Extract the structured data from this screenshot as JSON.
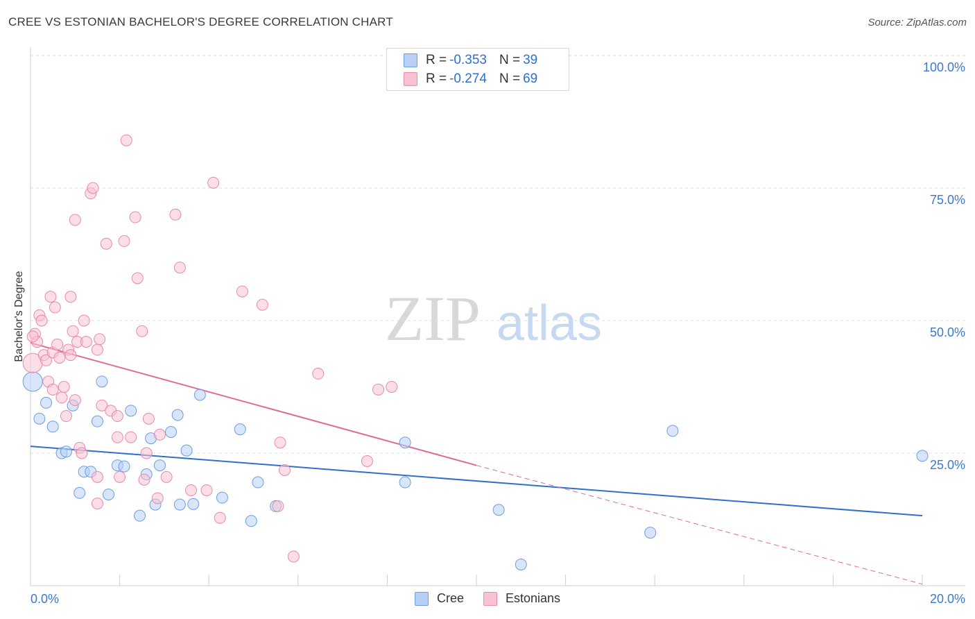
{
  "header": {
    "title": "CREE VS ESTONIAN BACHELOR'S DEGREE CORRELATION CHART",
    "source": "Source: ZipAtlas.com"
  },
  "watermark": {
    "zip": "ZIP",
    "atlas": "atlas"
  },
  "legend": {
    "rows": [
      {
        "r_label": "R =",
        "r_value": "-0.353",
        "n_label": "N =",
        "n_value": "39"
      },
      {
        "r_label": "R =",
        "r_value": "-0.274",
        "n_label": "N =",
        "n_value": "69"
      }
    ]
  },
  "bottom_legend": {
    "cree": "Cree",
    "estonians": "Estonians"
  },
  "colors": {
    "cree_fill": "#b8d0f5",
    "cree_stroke": "#6c9ee0",
    "cree_line": "#2f6fd0",
    "est_fill": "#f7c3d4",
    "est_stroke": "#e88aa9",
    "est_line": "#e06a95",
    "axis_text": "#3a78d0"
  },
  "chart_data": {
    "type": "scatter",
    "title": "CREE VS ESTONIAN BACHELOR'S DEGREE CORRELATION CHART",
    "xlabel": "",
    "ylabel": "Bachelor's Degree",
    "xlim": [
      0,
      20
    ],
    "ylim": [
      0,
      100
    ],
    "x_tick_labels": [
      "0.0%",
      "20.0%"
    ],
    "y_ticks": [
      25,
      50,
      75,
      100
    ],
    "y_tick_labels": [
      "25.0%",
      "50.0%",
      "75.0%",
      "100.0%"
    ],
    "legend_position": "top-center",
    "series": [
      {
        "name": "Cree",
        "points": [
          [
            0.05,
            38.5
          ],
          [
            0.2,
            31.5
          ],
          [
            0.35,
            34.5
          ],
          [
            0.5,
            30
          ],
          [
            0.7,
            25
          ],
          [
            0.8,
            25.3
          ],
          [
            0.95,
            34
          ],
          [
            1.1,
            17.5
          ],
          [
            1.2,
            21.5
          ],
          [
            1.35,
            21.5
          ],
          [
            1.5,
            31
          ],
          [
            1.6,
            38.5
          ],
          [
            1.75,
            17.2
          ],
          [
            1.95,
            22.7
          ],
          [
            2.1,
            22.5
          ],
          [
            2.25,
            33
          ],
          [
            2.45,
            13.2
          ],
          [
            2.6,
            21
          ],
          [
            2.7,
            27.8
          ],
          [
            2.8,
            15.3
          ],
          [
            2.9,
            22.7
          ],
          [
            3.15,
            29
          ],
          [
            3.3,
            32.2
          ],
          [
            3.35,
            15.3
          ],
          [
            3.5,
            25.5
          ],
          [
            3.65,
            15.4
          ],
          [
            3.8,
            36
          ],
          [
            4.3,
            16.6
          ],
          [
            4.7,
            29.5
          ],
          [
            4.95,
            12.2
          ],
          [
            5.1,
            19.5
          ],
          [
            5.5,
            15
          ],
          [
            8.4,
            27
          ],
          [
            8.4,
            19.5
          ],
          [
            10.5,
            14.3
          ],
          [
            11.0,
            4
          ],
          [
            13.9,
            10
          ],
          [
            14.4,
            29.2
          ],
          [
            20.0,
            24.5
          ]
        ]
      },
      {
        "name": "Estonians",
        "points": [
          [
            0.05,
            42
          ],
          [
            0.1,
            47.5
          ],
          [
            0.15,
            46
          ],
          [
            0.2,
            51
          ],
          [
            0.25,
            50
          ],
          [
            0.3,
            43.5
          ],
          [
            0.35,
            42.5
          ],
          [
            0.4,
            38.5
          ],
          [
            0.45,
            54.5
          ],
          [
            0.5,
            44
          ],
          [
            0.55,
            52.5
          ],
          [
            0.6,
            45.5
          ],
          [
            0.65,
            43
          ],
          [
            0.7,
            35.5
          ],
          [
            0.75,
            37.5
          ],
          [
            0.8,
            32
          ],
          [
            0.85,
            44.5
          ],
          [
            0.9,
            43.5
          ],
          [
            0.95,
            48
          ],
          [
            1.0,
            35
          ],
          [
            1.05,
            46
          ],
          [
            1.1,
            26
          ],
          [
            1.15,
            25
          ],
          [
            1.2,
            50
          ],
          [
            1.25,
            46
          ],
          [
            1.35,
            74
          ],
          [
            1.4,
            75
          ],
          [
            1.5,
            44.5
          ],
          [
            1.55,
            46.5
          ],
          [
            1.6,
            34
          ],
          [
            1.7,
            64.5
          ],
          [
            1.5,
            15.5
          ],
          [
            1.5,
            20.5
          ],
          [
            0.9,
            54.5
          ],
          [
            1.0,
            69
          ],
          [
            1.8,
            33
          ],
          [
            1.95,
            32
          ],
          [
            1.95,
            28
          ],
          [
            2.0,
            20.5
          ],
          [
            2.1,
            65
          ],
          [
            2.15,
            84
          ],
          [
            2.25,
            28
          ],
          [
            2.35,
            69.5
          ],
          [
            2.4,
            58
          ],
          [
            2.5,
            48
          ],
          [
            2.55,
            20
          ],
          [
            2.6,
            25
          ],
          [
            2.65,
            31.5
          ],
          [
            2.85,
            16.5
          ],
          [
            2.9,
            28.5
          ],
          [
            3.05,
            20.5
          ],
          [
            3.25,
            70
          ],
          [
            3.35,
            60
          ],
          [
            3.6,
            18
          ],
          [
            3.95,
            18
          ],
          [
            4.1,
            76
          ],
          [
            4.25,
            12.8
          ],
          [
            4.75,
            55.5
          ],
          [
            5.2,
            53
          ],
          [
            5.55,
            15
          ],
          [
            5.6,
            27
          ],
          [
            5.7,
            21.8
          ],
          [
            5.9,
            5.5
          ],
          [
            6.45,
            40
          ],
          [
            7.55,
            23.5
          ],
          [
            7.8,
            37
          ],
          [
            8.1,
            37.5
          ],
          [
            0.05,
            47
          ],
          [
            0.5,
            37
          ]
        ]
      }
    ],
    "trendlines": [
      {
        "name": "Cree",
        "x": [
          0,
          20
        ],
        "y": [
          26.3,
          13.2
        ],
        "style": "solid"
      },
      {
        "name": "Estonians",
        "x": [
          0,
          10
        ],
        "y": [
          45.8,
          22.7
        ],
        "style": "solid"
      },
      {
        "name": "Estonians-extrapolated",
        "x": [
          10,
          20
        ],
        "y": [
          22.7,
          0.3
        ],
        "style": "dashed"
      }
    ]
  }
}
